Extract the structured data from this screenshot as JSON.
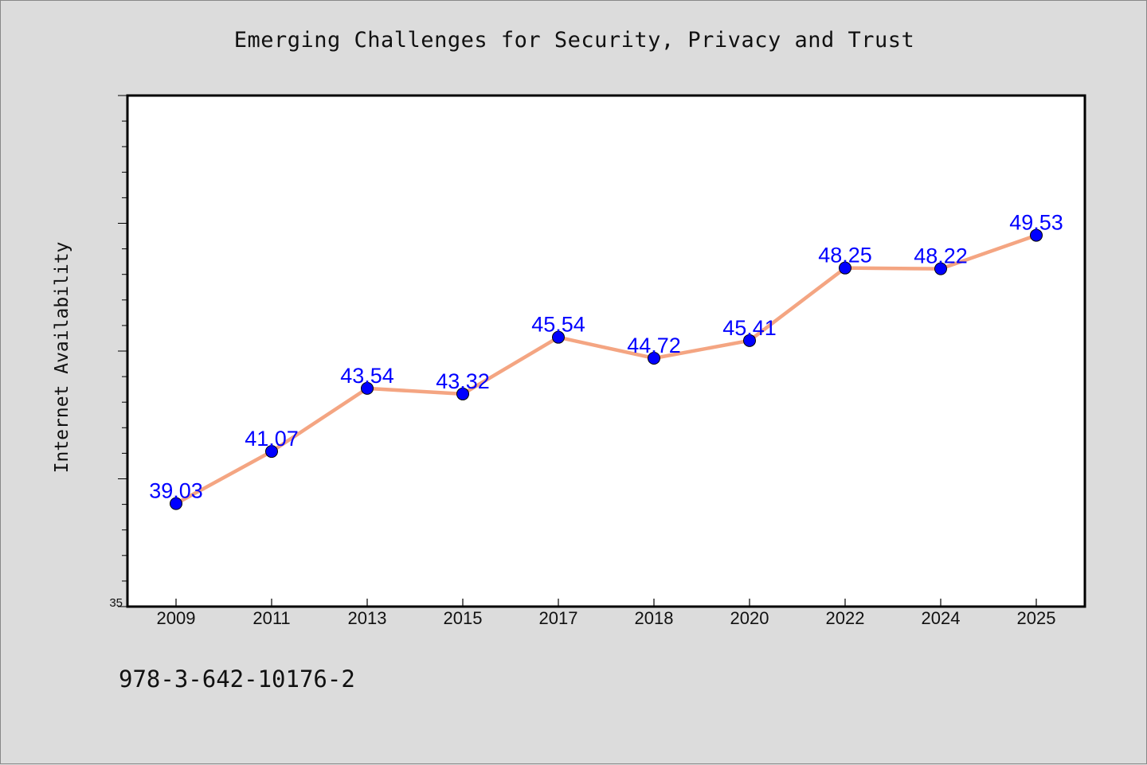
{
  "chart_data": {
    "type": "line",
    "title": "Emerging Challenges for Security, Privacy and Trust",
    "xlabel": "",
    "ylabel": "Internet Availability",
    "categories": [
      "2009",
      "2011",
      "2013",
      "2015",
      "2017",
      "2018",
      "2020",
      "2022",
      "2024",
      "2025"
    ],
    "series": [
      {
        "values": [
          39.03,
          41.07,
          43.54,
          43.32,
          45.54,
          44.72,
          45.41,
          48.25,
          48.22,
          49.53
        ]
      }
    ],
    "data_labels": [
      "39.03",
      "41.07",
      "43.54",
      "43.32",
      "45.54",
      "44.72",
      "45.41",
      "48.25",
      "48.22",
      "49.53"
    ],
    "ylim": [
      35,
      55
    ],
    "y_tick_labels": [
      "35"
    ],
    "grid": false,
    "line_color": "#f4a582",
    "marker_color": "#0000ff",
    "label_color": "#0000ff"
  },
  "footer": {
    "code": "978-3-642-10176-2"
  }
}
